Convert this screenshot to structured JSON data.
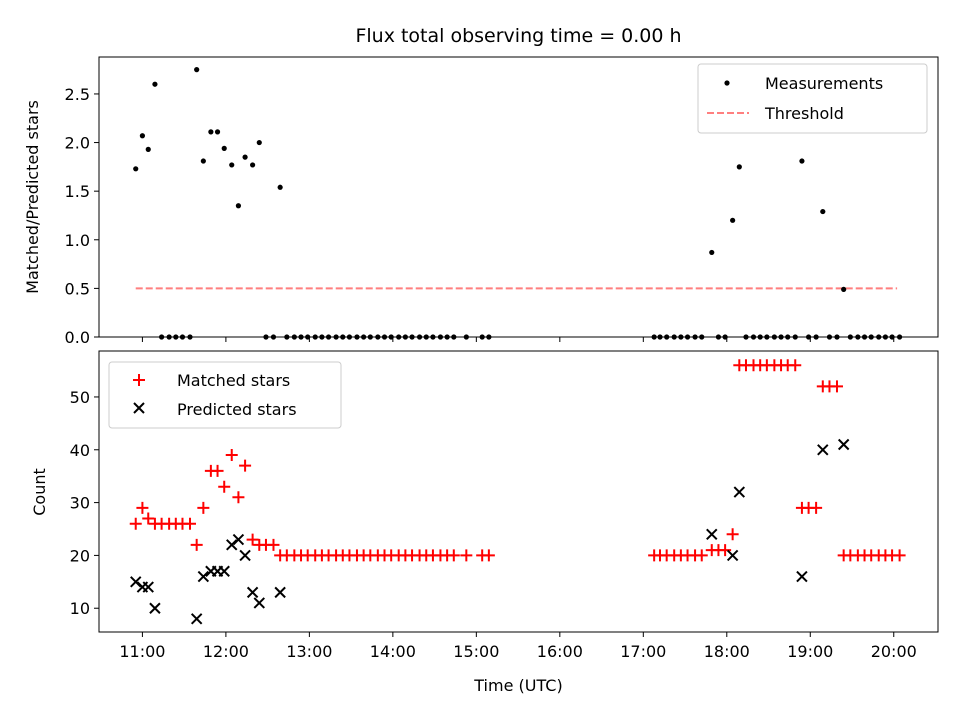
{
  "chart_data": {
    "title": "Flux total observing time = 0.00 h",
    "xlabel": "Time (UTC)",
    "x_unit": "hours UTC",
    "xlim": [
      10.48,
      20.53
    ],
    "xticks": [
      11,
      12,
      13,
      14,
      15,
      16,
      17,
      18,
      19,
      20
    ],
    "xtick_labels": [
      "11:00",
      "12:00",
      "13:00",
      "14:00",
      "15:00",
      "16:00",
      "17:00",
      "18:00",
      "19:00",
      "20:00"
    ],
    "top": {
      "type": "scatter",
      "ylabel": "Matched/Predicted stars",
      "ylim": [
        0,
        2.88
      ],
      "yticks": [
        0.0,
        0.5,
        1.0,
        1.5,
        2.0,
        2.5
      ],
      "ytick_labels": [
        "0.0",
        "0.5",
        "1.0",
        "1.5",
        "2.0",
        "2.5"
      ],
      "legend_position": "top-right",
      "threshold": {
        "name": "Threshold",
        "value": 0.5,
        "x_range": [
          10.92,
          20.04
        ],
        "color": "#ff7f7f"
      },
      "measurements": {
        "name": "Measurements",
        "color": "#000000",
        "points": [
          [
            10.92,
            1.73
          ],
          [
            11.0,
            2.07
          ],
          [
            11.07,
            1.93
          ],
          [
            11.15,
            2.6
          ],
          [
            11.65,
            2.75
          ],
          [
            11.73,
            1.81
          ],
          [
            11.82,
            2.11
          ],
          [
            11.9,
            2.11
          ],
          [
            11.98,
            1.94
          ],
          [
            12.07,
            1.77
          ],
          [
            12.15,
            1.35
          ],
          [
            12.23,
            1.85
          ],
          [
            12.32,
            1.77
          ],
          [
            12.4,
            2.0
          ],
          [
            12.65,
            1.54
          ],
          [
            17.82,
            0.87
          ],
          [
            18.07,
            1.2
          ],
          [
            18.15,
            1.75
          ],
          [
            18.9,
            1.81
          ],
          [
            19.15,
            1.29
          ],
          [
            19.4,
            0.49
          ],
          [
            11.23,
            0
          ],
          [
            11.32,
            0
          ],
          [
            11.4,
            0
          ],
          [
            11.48,
            0
          ],
          [
            11.57,
            0
          ],
          [
            12.48,
            0
          ],
          [
            12.57,
            0
          ],
          [
            12.73,
            0
          ],
          [
            12.82,
            0
          ],
          [
            12.9,
            0
          ],
          [
            12.98,
            0
          ],
          [
            13.07,
            0
          ],
          [
            13.15,
            0
          ],
          [
            13.23,
            0
          ],
          [
            13.32,
            0
          ],
          [
            13.4,
            0
          ],
          [
            13.48,
            0
          ],
          [
            13.57,
            0
          ],
          [
            13.65,
            0
          ],
          [
            13.73,
            0
          ],
          [
            13.82,
            0
          ],
          [
            13.9,
            0
          ],
          [
            13.98,
            0
          ],
          [
            14.07,
            0
          ],
          [
            14.15,
            0
          ],
          [
            14.23,
            0
          ],
          [
            14.32,
            0
          ],
          [
            14.4,
            0
          ],
          [
            14.48,
            0
          ],
          [
            14.57,
            0
          ],
          [
            14.65,
            0
          ],
          [
            14.73,
            0
          ],
          [
            14.88,
            0
          ],
          [
            15.07,
            0
          ],
          [
            15.15,
            0
          ],
          [
            17.13,
            0
          ],
          [
            17.2,
            0
          ],
          [
            17.28,
            0
          ],
          [
            17.37,
            0
          ],
          [
            17.45,
            0
          ],
          [
            17.53,
            0
          ],
          [
            17.62,
            0
          ],
          [
            17.7,
            0
          ],
          [
            17.9,
            0
          ],
          [
            17.98,
            0
          ],
          [
            18.23,
            0
          ],
          [
            18.32,
            0
          ],
          [
            18.4,
            0
          ],
          [
            18.48,
            0
          ],
          [
            18.57,
            0
          ],
          [
            18.65,
            0
          ],
          [
            18.73,
            0
          ],
          [
            18.82,
            0
          ],
          [
            18.98,
            0
          ],
          [
            19.07,
            0
          ],
          [
            19.23,
            0
          ],
          [
            19.32,
            0
          ],
          [
            19.48,
            0
          ],
          [
            19.57,
            0
          ],
          [
            19.65,
            0
          ],
          [
            19.73,
            0
          ],
          [
            19.82,
            0
          ],
          [
            19.9,
            0
          ],
          [
            19.98,
            0
          ],
          [
            20.07,
            0
          ]
        ]
      }
    },
    "bottom": {
      "type": "scatter",
      "ylabel": "Count",
      "ylim": [
        5.5,
        58.7
      ],
      "yticks": [
        10,
        20,
        30,
        40,
        50
      ],
      "ytick_labels": [
        "10",
        "20",
        "30",
        "40",
        "50"
      ],
      "legend_position": "top-left",
      "series": [
        {
          "name": "Matched stars",
          "marker": "plus",
          "color": "#ff0000",
          "points": [
            [
              10.92,
              26
            ],
            [
              11.0,
              29
            ],
            [
              11.07,
              27
            ],
            [
              11.15,
              26
            ],
            [
              11.23,
              26
            ],
            [
              11.32,
              26
            ],
            [
              11.4,
              26
            ],
            [
              11.48,
              26
            ],
            [
              11.57,
              26
            ],
            [
              11.65,
              22
            ],
            [
              11.73,
              29
            ],
            [
              11.82,
              36
            ],
            [
              11.9,
              36
            ],
            [
              11.98,
              33
            ],
            [
              12.07,
              39
            ],
            [
              12.15,
              31
            ],
            [
              12.23,
              37
            ],
            [
              12.32,
              23
            ],
            [
              12.4,
              22
            ],
            [
              12.48,
              22
            ],
            [
              12.57,
              22
            ],
            [
              12.65,
              20
            ],
            [
              12.73,
              20
            ],
            [
              12.82,
              20
            ],
            [
              12.9,
              20
            ],
            [
              12.98,
              20
            ],
            [
              13.07,
              20
            ],
            [
              13.15,
              20
            ],
            [
              13.23,
              20
            ],
            [
              13.32,
              20
            ],
            [
              13.4,
              20
            ],
            [
              13.48,
              20
            ],
            [
              13.57,
              20
            ],
            [
              13.65,
              20
            ],
            [
              13.73,
              20
            ],
            [
              13.82,
              20
            ],
            [
              13.9,
              20
            ],
            [
              13.98,
              20
            ],
            [
              14.07,
              20
            ],
            [
              14.15,
              20
            ],
            [
              14.23,
              20
            ],
            [
              14.32,
              20
            ],
            [
              14.4,
              20
            ],
            [
              14.48,
              20
            ],
            [
              14.57,
              20
            ],
            [
              14.65,
              20
            ],
            [
              14.73,
              20
            ],
            [
              14.88,
              20
            ],
            [
              15.07,
              20
            ],
            [
              15.15,
              20
            ],
            [
              17.13,
              20
            ],
            [
              17.2,
              20
            ],
            [
              17.28,
              20
            ],
            [
              17.37,
              20
            ],
            [
              17.45,
              20
            ],
            [
              17.53,
              20
            ],
            [
              17.62,
              20
            ],
            [
              17.7,
              20
            ],
            [
              17.82,
              21
            ],
            [
              17.9,
              21
            ],
            [
              17.98,
              21
            ],
            [
              18.07,
              24
            ],
            [
              18.15,
              56
            ],
            [
              18.23,
              56
            ],
            [
              18.32,
              56
            ],
            [
              18.4,
              56
            ],
            [
              18.48,
              56
            ],
            [
              18.57,
              56
            ],
            [
              18.65,
              56
            ],
            [
              18.73,
              56
            ],
            [
              18.82,
              56
            ],
            [
              18.9,
              29
            ],
            [
              18.98,
              29
            ],
            [
              19.07,
              29
            ],
            [
              19.15,
              52
            ],
            [
              19.23,
              52
            ],
            [
              19.32,
              52
            ],
            [
              19.4,
              20
            ],
            [
              19.48,
              20
            ],
            [
              19.57,
              20
            ],
            [
              19.65,
              20
            ],
            [
              19.73,
              20
            ],
            [
              19.82,
              20
            ],
            [
              19.9,
              20
            ],
            [
              19.98,
              20
            ],
            [
              20.07,
              20
            ]
          ]
        },
        {
          "name": "Predicted stars",
          "marker": "x",
          "color": "#000000",
          "points": [
            [
              10.92,
              15
            ],
            [
              11.0,
              14
            ],
            [
              11.07,
              14
            ],
            [
              11.15,
              10
            ],
            [
              11.65,
              8
            ],
            [
              11.73,
              16
            ],
            [
              11.82,
              17
            ],
            [
              11.9,
              17
            ],
            [
              11.98,
              17
            ],
            [
              12.07,
              22
            ],
            [
              12.15,
              23
            ],
            [
              12.23,
              20
            ],
            [
              12.32,
              13
            ],
            [
              12.4,
              11
            ],
            [
              12.65,
              13
            ],
            [
              17.82,
              24
            ],
            [
              18.07,
              20
            ],
            [
              18.15,
              32
            ],
            [
              18.9,
              16
            ],
            [
              19.15,
              40
            ],
            [
              19.4,
              41
            ]
          ]
        }
      ]
    }
  }
}
